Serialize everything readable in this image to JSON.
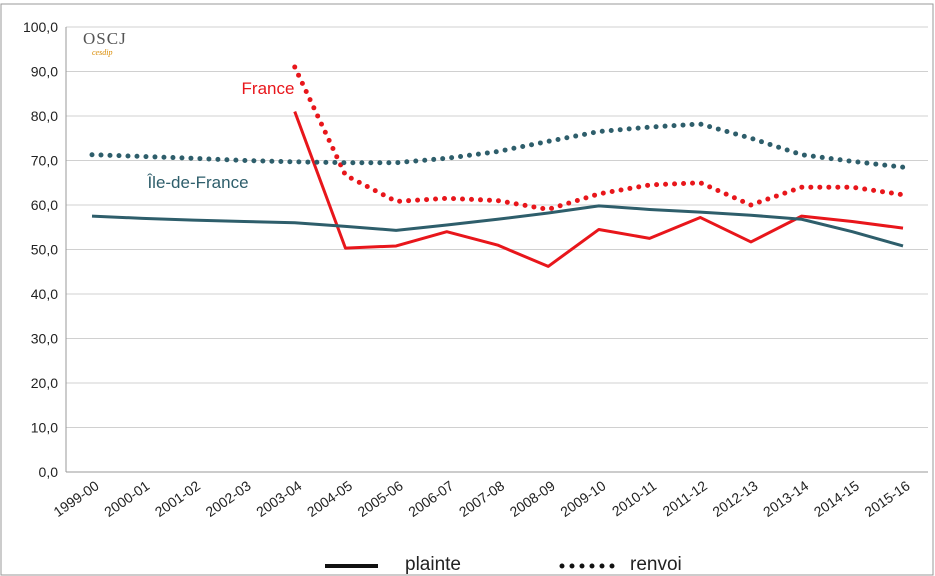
{
  "chart_data": {
    "type": "line",
    "logo": {
      "title": "OSCJ",
      "subtitle": "cesdip"
    },
    "categories": [
      "1999-00",
      "2000-01",
      "2001-02",
      "2002-03",
      "2003-04",
      "2004-05",
      "2005-06",
      "2006-07",
      "2007-08",
      "2008-09",
      "2009-10",
      "2010-11",
      "2011-12",
      "2012-13",
      "2013-14",
      "2014-15",
      "2015-16"
    ],
    "series": [
      {
        "color": "#e8161b",
        "dash": "solid",
        "values": [
          null,
          null,
          null,
          null,
          81,
          50.3,
          50.8,
          54,
          51,
          46.2,
          54.5,
          52.5,
          57.2,
          51.7,
          57.5,
          56.3,
          54.8
        ]
      },
      {
        "color": "#e8161b",
        "dash": "dotted",
        "values": [
          null,
          null,
          null,
          null,
          91,
          66.7,
          60.8,
          61.5,
          61,
          59,
          62.5,
          64.5,
          65,
          60,
          64,
          64,
          62.3
        ]
      },
      {
        "color": "#2e5e6b",
        "dash": "solid",
        "values": [
          57.5,
          57,
          56.6,
          56.3,
          56,
          55.2,
          54.3,
          55.5,
          56.8,
          58.2,
          59.8,
          59,
          58.4,
          57.7,
          56.8,
          54,
          50.8
        ]
      },
      {
        "color": "#2e5e6b",
        "dash": "dotted",
        "values": [
          71.3,
          70.9,
          70.5,
          70,
          69.7,
          69.5,
          69.5,
          70.5,
          72,
          74.3,
          76.5,
          77.5,
          78.2,
          75,
          71.3,
          69.8,
          68.5
        ]
      }
    ],
    "annotations": [
      {
        "text": "France",
        "color": "#e8161b"
      },
      {
        "text": "Île-de-France",
        "color": "#2e5e6b"
      }
    ],
    "legend": [
      {
        "label": "plainte",
        "dash": "solid"
      },
      {
        "label": "renvoi",
        "dash": "dotted"
      }
    ],
    "ylim": [
      0,
      100
    ],
    "yticks": [
      {
        "value": 0,
        "label": "0,0"
      },
      {
        "value": 10,
        "label": "10,0"
      },
      {
        "value": 20,
        "label": "20,0"
      },
      {
        "value": 30,
        "label": "30,0"
      },
      {
        "value": 40,
        "label": "40,0"
      },
      {
        "value": 50,
        "label": "50,0"
      },
      {
        "value": 60,
        "label": "60,0"
      },
      {
        "value": 70,
        "label": "70,0"
      },
      {
        "value": 80,
        "label": "80,0"
      },
      {
        "value": 90,
        "label": "90,0"
      },
      {
        "value": 100,
        "label": "100,0"
      }
    ],
    "grid": true
  }
}
